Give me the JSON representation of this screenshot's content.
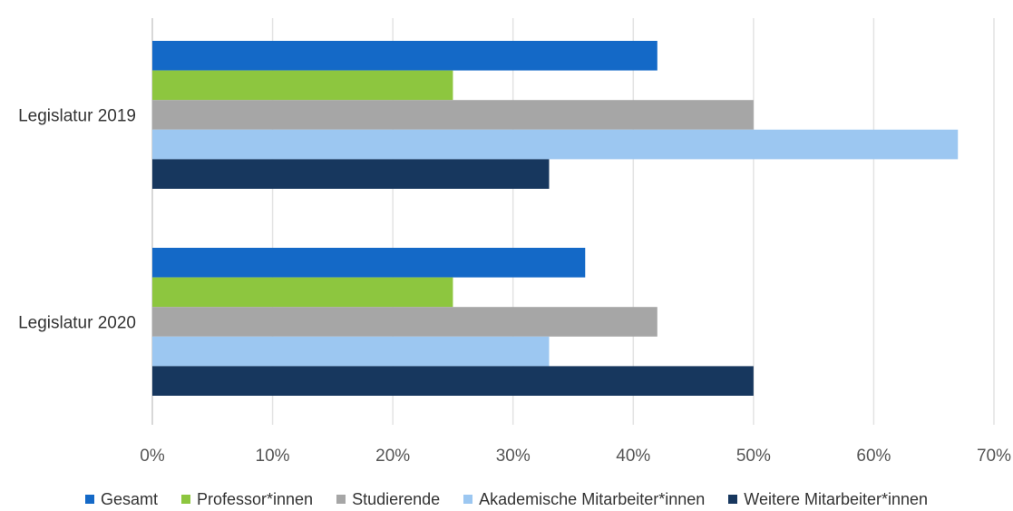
{
  "chart_data": {
    "type": "bar",
    "orientation": "horizontal",
    "categories": [
      "Legislatur 2019",
      "Legislatur 2020"
    ],
    "series": [
      {
        "name": "Gesamt",
        "color": "#1469c7",
        "values": [
          42,
          36
        ]
      },
      {
        "name": "Professor*innen",
        "color": "#8dc63f",
        "values": [
          25,
          25
        ]
      },
      {
        "name": "Studierende",
        "color": "#a6a6a6",
        "values": [
          50,
          42
        ]
      },
      {
        "name": "Akademische Mitarbeiter*innen",
        "color": "#9cc7f1",
        "values": [
          67,
          33
        ]
      },
      {
        "name": "Weitere Mitarbeiter*innen",
        "color": "#17375e",
        "values": [
          33,
          50
        ]
      }
    ],
    "xlim": [
      0,
      70
    ],
    "x_ticks": [
      "0%",
      "10%",
      "20%",
      "30%",
      "40%",
      "50%",
      "60%",
      "70%"
    ],
    "x_tick_values": [
      0,
      10,
      20,
      30,
      40,
      50,
      60,
      70
    ],
    "value_unit": "%",
    "grid": "vertical",
    "legend_position": "bottom",
    "title": "",
    "xlabel": "",
    "ylabel": ""
  }
}
